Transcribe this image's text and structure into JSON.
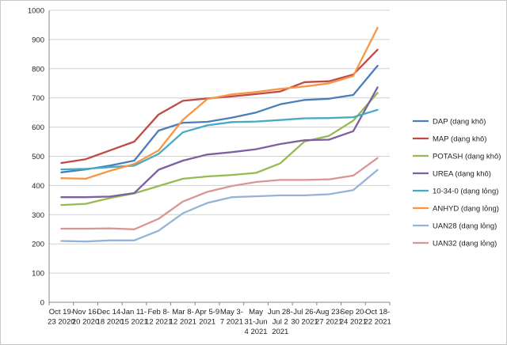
{
  "chart_data": {
    "type": "line",
    "title": "",
    "xlabel": "",
    "ylabel": "",
    "ylim": [
      0,
      1000
    ],
    "y_ticks": [
      0,
      100,
      200,
      300,
      400,
      500,
      600,
      700,
      800,
      900,
      1000
    ],
    "grid": "horizontal",
    "legend_position": "right",
    "categories": [
      "Oct 19-23 2020",
      "Nov 16-20 2020",
      "Dec 14-18 2020",
      "Jan 11-15 2021",
      "Feb 8-12 2021",
      "Mar 8-12 2021",
      "Apr 5-9 2021",
      "May 3-7 2021",
      "May 31-Jun 4 2021",
      "Jun 28-Jul 2 2021",
      "Jul 26-30 2021",
      "Aug 23-27 2021",
      "Sep 20-24 2021",
      "Oct 18-22 2021"
    ],
    "tick_label_lines": [
      [
        "Oct 19-",
        "23 2020"
      ],
      [
        "Nov 16-",
        "20 2020"
      ],
      [
        "Dec 14-",
        "18 2020"
      ],
      [
        "Jan 11-",
        "15 2021"
      ],
      [
        "Feb 8-",
        "12 2021"
      ],
      [
        "Mar 8-",
        "12 2021"
      ],
      [
        "Apr 5-9",
        "2021"
      ],
      [
        "May 3-",
        "7 2021"
      ],
      [
        "May",
        "31-Jun",
        "4 2021"
      ],
      [
        "Jun 28-",
        "Jul 2",
        "2021"
      ],
      [
        "Jul 26-",
        "30 2021"
      ],
      [
        "Aug 23-",
        "27 2021"
      ],
      [
        "Sep 20-",
        "24 2021"
      ],
      [
        "Oct 18-",
        "22 2021"
      ]
    ],
    "series": [
      {
        "name": "DAP (dạng khô)",
        "color": "#4a7ebb",
        "values": [
          445,
          455,
          468,
          485,
          588,
          615,
          618,
          632,
          650,
          678,
          693,
          697,
          710,
          810
        ]
      },
      {
        "name": "MAP (dạng khô)",
        "color": "#be4b48",
        "values": [
          477,
          490,
          520,
          550,
          643,
          690,
          698,
          705,
          713,
          722,
          754,
          757,
          780,
          865
        ]
      },
      {
        "name": "POTASH (dạng khô)",
        "color": "#98b954",
        "values": [
          333,
          337,
          357,
          373,
          398,
          423,
          431,
          436,
          443,
          476,
          551,
          570,
          622,
          717
        ]
      },
      {
        "name": "UREA (dạng khô)",
        "color": "#7d60a0",
        "values": [
          360,
          360,
          362,
          374,
          454,
          485,
          506,
          514,
          524,
          542,
          555,
          557,
          586,
          736
        ]
      },
      {
        "name": "10-34-0 (dạng lỏng)",
        "color": "#46aac5",
        "values": [
          455,
          457,
          463,
          468,
          508,
          582,
          606,
          617,
          619,
          624,
          630,
          631,
          634,
          659
        ]
      },
      {
        "name": "ANHYD (dạng lỏng)",
        "color": "#f79646",
        "values": [
          425,
          423,
          450,
          474,
          520,
          625,
          696,
          712,
          720,
          731,
          739,
          750,
          775,
          940
        ]
      },
      {
        "name": "UAN28 (dạng lỏng)",
        "color": "#95b3d7",
        "values": [
          210,
          208,
          212,
          212,
          245,
          305,
          340,
          360,
          363,
          366,
          366,
          370,
          384,
          453
        ]
      },
      {
        "name": "UAN32 (dạng lỏng)",
        "color": "#d99694",
        "values": [
          252,
          252,
          253,
          250,
          286,
          345,
          378,
          398,
          412,
          419,
          419,
          421,
          434,
          494
        ]
      }
    ]
  }
}
